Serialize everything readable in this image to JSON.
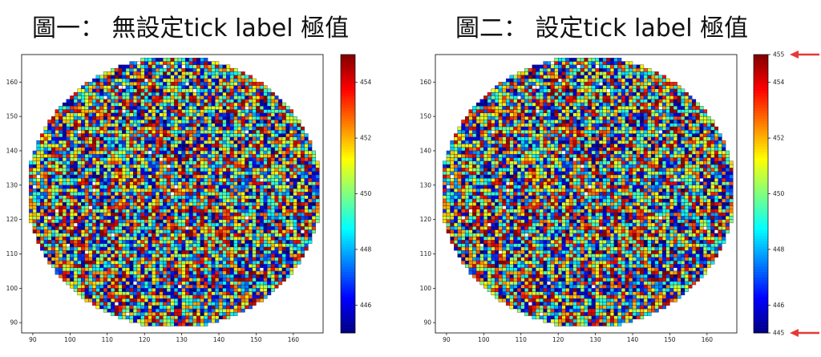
{
  "panels": [
    {
      "title": "圖一： 無設定tick label 極值"
    },
    {
      "title": "圖二： 設定tick label 極值"
    }
  ],
  "chart_data": [
    {
      "type": "heatmap",
      "title": "圖一： 無設定tick label 極值",
      "description_of_values": "wafer-map grid of cells colored by value with jet colormap",
      "colormap": "jet",
      "xlim": [
        87,
        168
      ],
      "ylim": [
        87,
        168
      ],
      "x_ticks": [
        "90",
        "100",
        "110",
        "120",
        "130",
        "140",
        "150",
        "160"
      ],
      "y_ticks": [
        "90",
        "100",
        "110",
        "120",
        "130",
        "140",
        "150",
        "160"
      ],
      "circle_center": [
        128,
        128
      ],
      "circle_radius": 39.5,
      "clim": [
        445,
        455
      ],
      "colorbar_ticks": [
        "446",
        "448",
        "450",
        "452",
        "454"
      ],
      "grid": false
    },
    {
      "type": "heatmap",
      "title": "圖二： 設定tick label 極值",
      "colormap": "jet",
      "xlim": [
        87,
        168
      ],
      "ylim": [
        87,
        168
      ],
      "x_ticks": [
        "90",
        "100",
        "110",
        "120",
        "130",
        "140",
        "150",
        "160"
      ],
      "y_ticks": [
        "90",
        "100",
        "110",
        "120",
        "130",
        "140",
        "150",
        "160"
      ],
      "circle_center": [
        128,
        128
      ],
      "circle_radius": 39.5,
      "clim": [
        445,
        455
      ],
      "colorbar_ticks": [
        "445",
        "446",
        "448",
        "450",
        "452",
        "454",
        "455"
      ],
      "grid": false,
      "annotations": [
        "arrow-to-455",
        "arrow-to-445"
      ]
    }
  ],
  "colors": {
    "arrow": "#e53935",
    "cell_edge": "#222222"
  }
}
